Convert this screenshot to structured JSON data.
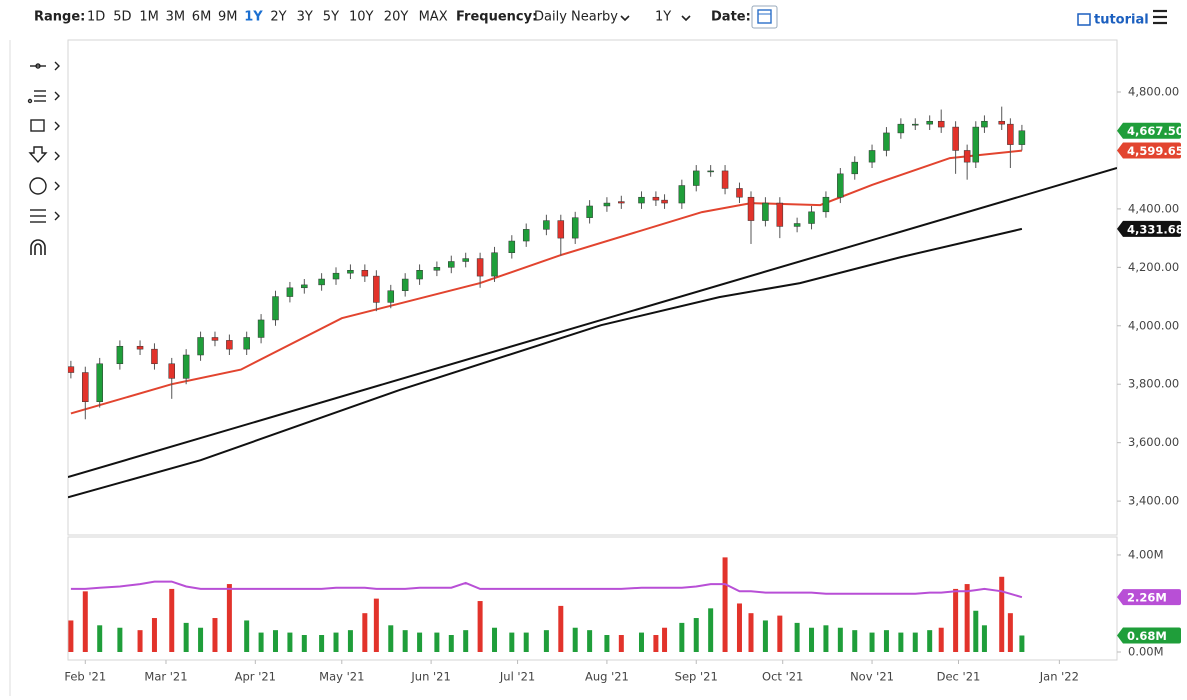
{
  "toolbar": {
    "range_label": "Range:",
    "ranges": [
      "1D",
      "5D",
      "1M",
      "3M",
      "6M",
      "9M",
      "1Y",
      "2Y",
      "3Y",
      "5Y",
      "10Y",
      "20Y",
      "MAX"
    ],
    "active_range": "1Y",
    "frequency_label": "Frequency:",
    "frequency": "Daily Nearby",
    "period": "1Y",
    "date_label": "Date:",
    "tutorial": "tutorial"
  },
  "chart_data": {
    "type": "candlestick",
    "x": [
      -5,
      0,
      5,
      12,
      19,
      24,
      30,
      35,
      40,
      45,
      50,
      56,
      61,
      66,
      71,
      76,
      82,
      87,
      92,
      97,
      101,
      106,
      111,
      116,
      122,
      127,
      132,
      137,
      142,
      148,
      153,
      160,
      165,
      170,
      175,
      181,
      186,
      193,
      198,
      201,
      207,
      212,
      217,
      222,
      227,
      231,
      236,
      241,
      247,
      252,
      257,
      262,
      267,
      273,
      278,
      283,
      288,
      293,
      297,
      302,
      306,
      309,
      312,
      318,
      321,
      325
    ],
    "open": [
      3860,
      3840,
      3740,
      3870,
      3930,
      3920,
      3870,
      3820,
      3900,
      3960,
      3950,
      3920,
      3960,
      4020,
      4100,
      4130,
      4140,
      4160,
      4180,
      4190,
      4170,
      4080,
      4120,
      4160,
      4190,
      4200,
      4220,
      4230,
      4170,
      4250,
      4290,
      4330,
      4360,
      4300,
      4370,
      4410,
      4425,
      4420,
      4440,
      4430,
      4420,
      4480,
      4530,
      4530,
      4470,
      4440,
      4360,
      4420,
      4340,
      4350,
      4390,
      4440,
      4520,
      4560,
      4600,
      4660,
      4690,
      4690,
      4700,
      4680,
      4600,
      4560,
      4680,
      4700,
      4690,
      4620
    ],
    "high": [
      3880,
      3860,
      3890,
      3950,
      3950,
      3940,
      3890,
      3920,
      3980,
      3980,
      3970,
      3980,
      4040,
      4120,
      4150,
      4160,
      4180,
      4200,
      4210,
      4210,
      4190,
      4140,
      4180,
      4210,
      4220,
      4240,
      4250,
      4250,
      4270,
      4310,
      4350,
      4380,
      4380,
      4390,
      4430,
      4440,
      4445,
      4460,
      4460,
      4450,
      4500,
      4550,
      4550,
      4550,
      4490,
      4460,
      4440,
      4440,
      4370,
      4410,
      4460,
      4540,
      4580,
      4620,
      4680,
      4710,
      4710,
      4720,
      4740,
      4700,
      4620,
      4700,
      4720,
      4750,
      4710,
      4687.5
    ],
    "low": [
      3820,
      3680,
      3720,
      3850,
      3900,
      3850,
      3750,
      3800,
      3880,
      3930,
      3900,
      3900,
      3940,
      4000,
      4080,
      4110,
      4120,
      4140,
      4160,
      4150,
      4050,
      4060,
      4100,
      4140,
      4170,
      4180,
      4200,
      4130,
      4150,
      4230,
      4270,
      4310,
      4240,
      4280,
      4350,
      4390,
      4400,
      4400,
      4410,
      4400,
      4400,
      4460,
      4510,
      4450,
      4420,
      4280,
      4340,
      4300,
      4320,
      4330,
      4370,
      4420,
      4500,
      4540,
      4580,
      4640,
      4670,
      4670,
      4660,
      4520,
      4500,
      4540,
      4660,
      4670,
      4540,
      4600
    ],
    "close": [
      3840,
      3740,
      3870,
      3930,
      3920,
      3870,
      3820,
      3900,
      3960,
      3950,
      3920,
      3960,
      4020,
      4100,
      4130,
      4140,
      4160,
      4180,
      4190,
      4170,
      4080,
      4120,
      4160,
      4190,
      4200,
      4220,
      4230,
      4170,
      4250,
      4290,
      4330,
      4360,
      4300,
      4370,
      4410,
      4420,
      4420,
      4440,
      4430,
      4420,
      4480,
      4530,
      4530,
      4470,
      4440,
      4360,
      4420,
      4340,
      4350,
      4390,
      4440,
      4520,
      4560,
      4600,
      4660,
      4690,
      4690,
      4700,
      4680,
      4600,
      4560,
      4680,
      4700,
      4690,
      4620,
      4667.5
    ],
    "up_color": "#1f9e3a",
    "down_color": "#e2332b",
    "lines": [
      {
        "color": "#e2442f",
        "x": [
          -5,
          30,
          54,
          89,
          137,
          165,
          214,
          231,
          255,
          273,
          300,
          325
        ],
        "values": [
          3700,
          3800,
          3850,
          4026,
          4146,
          4242,
          4389,
          4420,
          4413,
          4482,
          4574,
          4599.65
        ]
      },
      {
        "color": "#111111",
        "x": [
          -6,
          358
        ],
        "values": [
          3482,
          4540
        ]
      },
      {
        "color": "#111111",
        "x": [
          -6,
          40,
          109,
          179,
          220,
          248,
          283,
          325
        ],
        "values": [
          3413,
          3540,
          3780,
          4002,
          4098,
          4146,
          4235,
          4331.68
        ]
      }
    ],
    "xlim": [
      -6,
      358
    ],
    "xticks": [
      {
        "value": 0,
        "label": "Feb '21"
      },
      {
        "value": 28,
        "label": "Mar '21"
      },
      {
        "value": 59,
        "label": "Apr '21"
      },
      {
        "value": 89,
        "label": "May '21"
      },
      {
        "value": 120,
        "label": "Jun '21"
      },
      {
        "value": 150,
        "label": "Jul '21"
      },
      {
        "value": 181,
        "label": "Aug '21"
      },
      {
        "value": 212,
        "label": "Sep '21"
      },
      {
        "value": 242,
        "label": "Oct '21"
      },
      {
        "value": 273,
        "label": "Nov '21"
      },
      {
        "value": 303,
        "label": "Dec '21"
      },
      {
        "value": 338,
        "label": "Jan '22"
      }
    ],
    "ylim": [
      3284,
      4978
    ],
    "yticks": [
      {
        "value": 3400,
        "label": "3,400.00"
      },
      {
        "value": 3600,
        "label": "3,600.00"
      },
      {
        "value": 3800,
        "label": "3,800.00"
      },
      {
        "value": 4000,
        "label": "4,000.00"
      },
      {
        "value": 4200,
        "label": "4,200.00"
      },
      {
        "value": 4400,
        "label": "4,400.00"
      },
      {
        "value": 4600,
        "label": "4,600.00"
      },
      {
        "value": 4800,
        "label": "4,800.00"
      }
    ],
    "last_values": [
      {
        "value": 4667.5,
        "label": "4,667.50",
        "color": "#1f9e3a"
      },
      {
        "value": 4599.65,
        "label": "4,599.65",
        "color": "#e2442f"
      },
      {
        "value": 4331.68,
        "label": "4,331.68",
        "color": "#111111"
      }
    ],
    "volume": {
      "values": [
        1.3,
        2.5,
        1.1,
        1.0,
        0.9,
        1.4,
        2.6,
        1.2,
        1.0,
        1.4,
        2.8,
        1.3,
        0.8,
        0.9,
        0.8,
        0.7,
        0.7,
        0.8,
        0.9,
        1.6,
        2.2,
        1.1,
        0.9,
        0.8,
        0.8,
        0.7,
        0.9,
        2.1,
        1.0,
        0.8,
        0.8,
        0.9,
        1.9,
        1.0,
        0.9,
        0.7,
        0.7,
        0.8,
        0.7,
        1.0,
        1.2,
        1.4,
        1.8,
        3.9,
        2.0,
        1.6,
        1.3,
        1.5,
        1.2,
        1.0,
        1.1,
        1.0,
        0.9,
        0.8,
        0.9,
        0.8,
        0.8,
        0.9,
        1.0,
        2.6,
        2.8,
        1.7,
        1.1,
        3.1,
        1.6,
        0.68
      ],
      "average": [
        2.6,
        2.6,
        2.65,
        2.7,
        2.8,
        2.9,
        2.9,
        2.7,
        2.6,
        2.6,
        2.6,
        2.6,
        2.6,
        2.6,
        2.6,
        2.6,
        2.6,
        2.65,
        2.65,
        2.65,
        2.6,
        2.6,
        2.6,
        2.65,
        2.65,
        2.65,
        2.85,
        2.6,
        2.6,
        2.6,
        2.6,
        2.6,
        2.6,
        2.6,
        2.6,
        2.6,
        2.6,
        2.65,
        2.65,
        2.65,
        2.65,
        2.7,
        2.8,
        2.8,
        2.5,
        2.5,
        2.45,
        2.45,
        2.45,
        2.45,
        2.4,
        2.4,
        2.4,
        2.4,
        2.4,
        2.4,
        2.4,
        2.45,
        2.45,
        2.5,
        2.5,
        2.55,
        2.6,
        2.5,
        2.4,
        2.26
      ],
      "average_color": "#b84fd6",
      "ylim": [
        -0.33,
        4.74
      ],
      "yticks": [
        {
          "value": 0,
          "label": "0.00M"
        },
        {
          "value": 4,
          "label": "4.00M"
        }
      ],
      "last_values": [
        {
          "value": 2.26,
          "label": "2.26M",
          "color": "#b84fd6"
        },
        {
          "value": 0.68,
          "label": "0.68M",
          "color": "#1f9e3a"
        }
      ]
    }
  }
}
